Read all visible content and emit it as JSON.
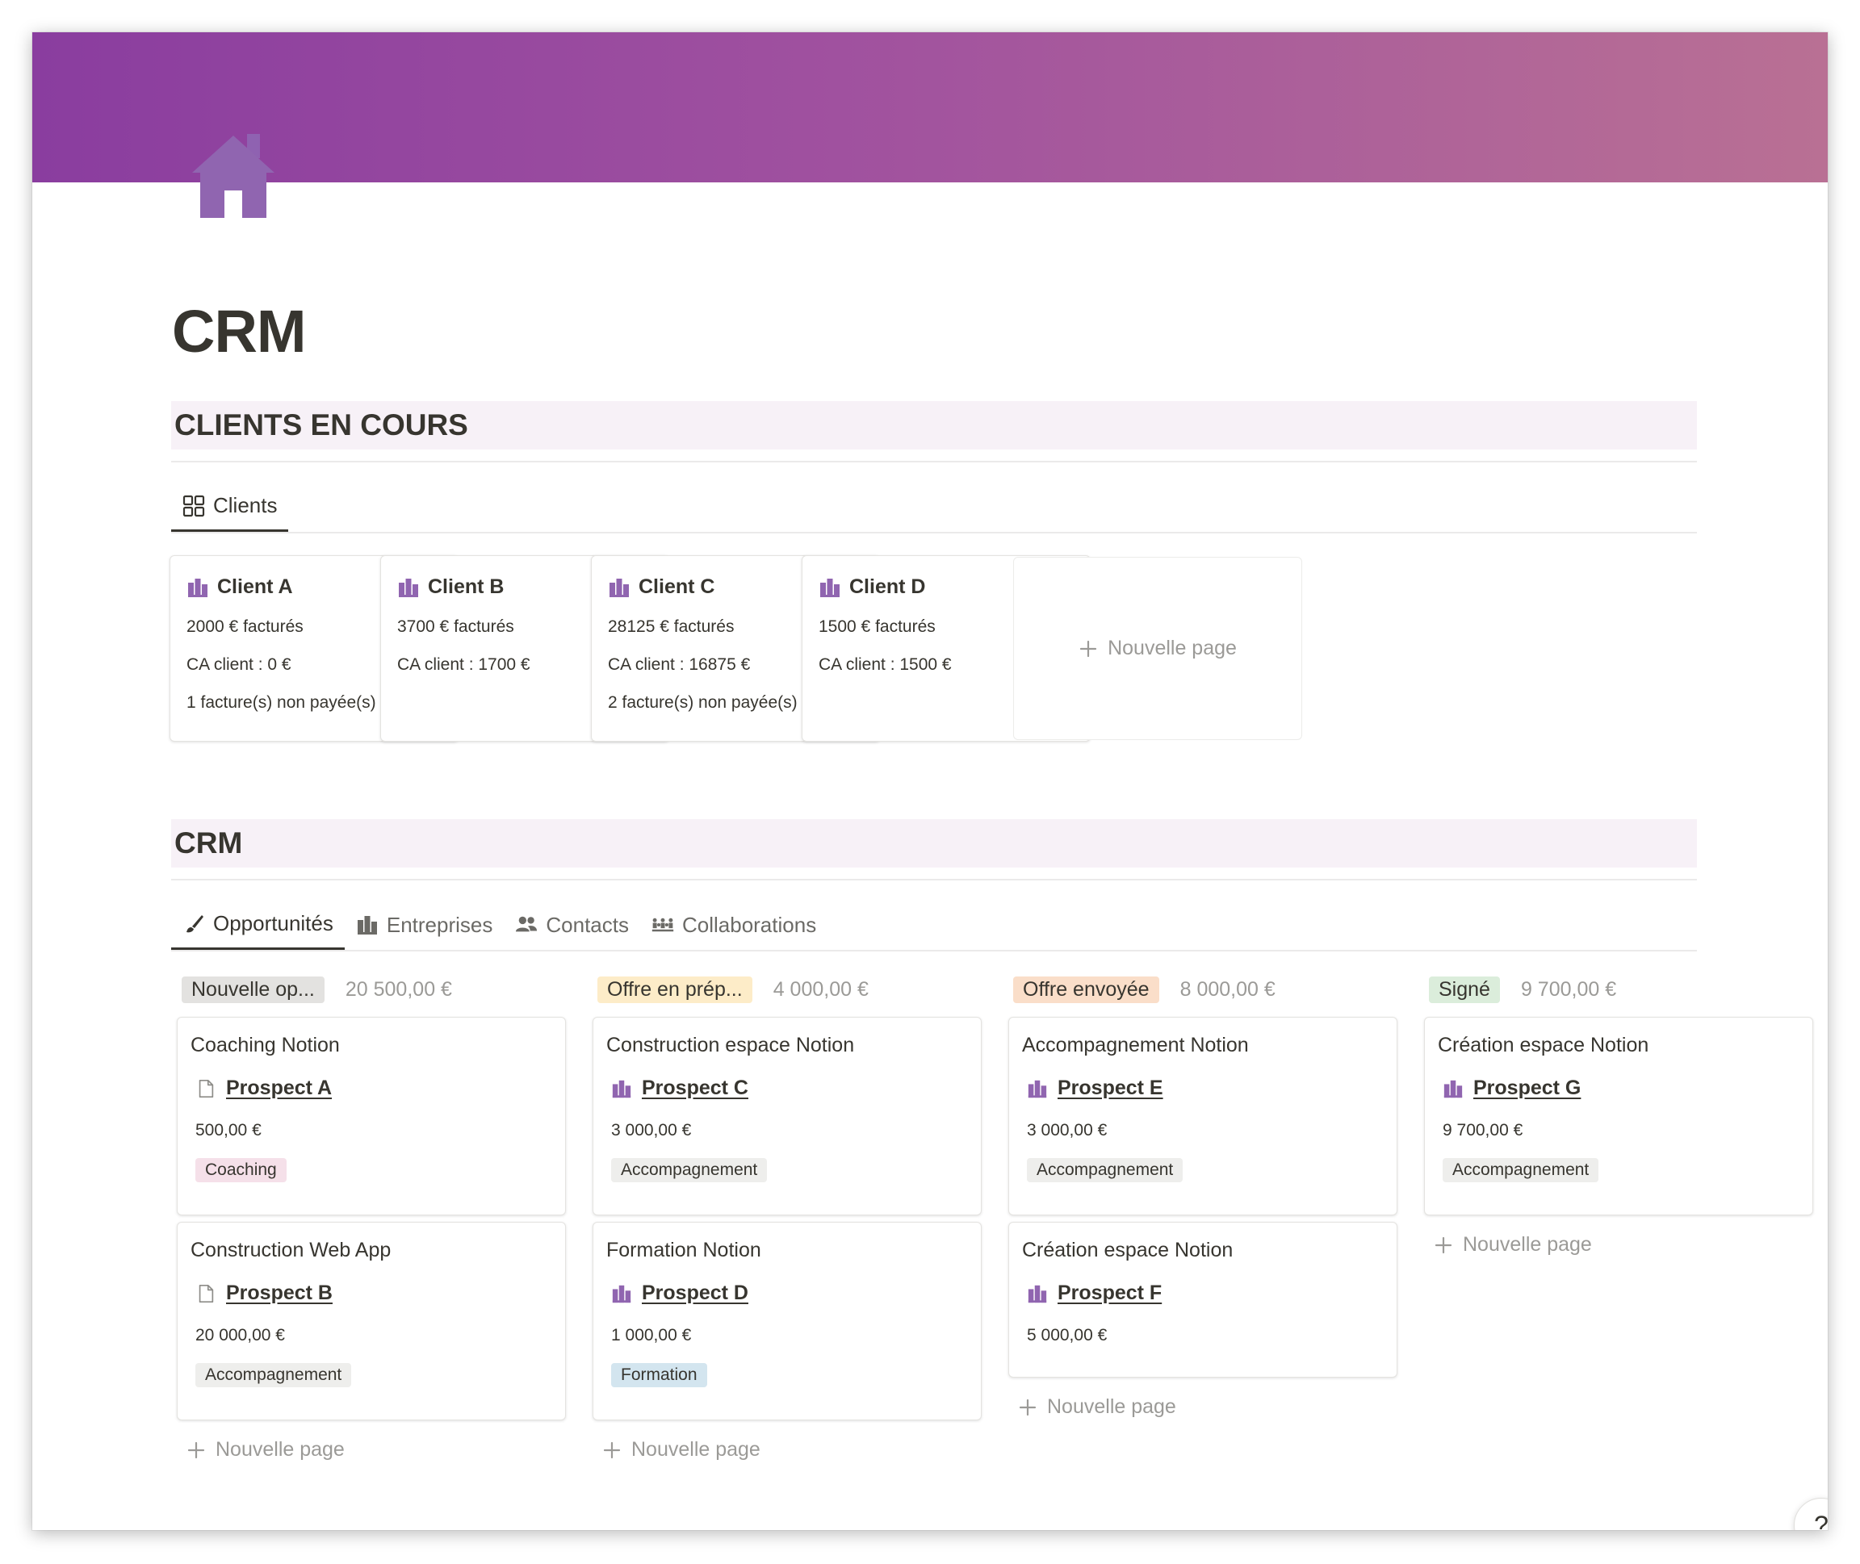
{
  "page": {
    "title": "CRM",
    "icon": "house-icon"
  },
  "colors": {
    "cover_start": "#8a3d9f",
    "cover_end": "#b97094",
    "icon_purple": "#9065b0",
    "band": "#f7f1f7"
  },
  "clients_section": {
    "heading": "CLIENTS EN COURS",
    "view_tab": "Clients",
    "cards": [
      {
        "name": "Client A",
        "lines": [
          "2000 € facturés",
          "CA client : 0 €",
          "1 facture(s) non payée(s)"
        ]
      },
      {
        "name": "Client B",
        "lines": [
          "3700 € facturés",
          "CA client : 1700 €"
        ]
      },
      {
        "name": "Client C",
        "lines": [
          "28125 € facturés",
          "CA client : 16875 €",
          "2 facture(s) non payée(s)"
        ]
      },
      {
        "name": "Client D",
        "lines": [
          "1500 € facturés",
          "CA client : 1500 €"
        ]
      }
    ],
    "new_page": "Nouvelle page"
  },
  "crm_section": {
    "heading": "CRM",
    "tabs": [
      {
        "label": "Opportunités",
        "icon": "brush-icon",
        "active": true
      },
      {
        "label": "Entreprises",
        "icon": "building-icon",
        "active": false
      },
      {
        "label": "Contacts",
        "icon": "people-icon",
        "active": false
      },
      {
        "label": "Collaborations",
        "icon": "group-icon",
        "active": false
      }
    ],
    "new_page": "Nouvelle page",
    "columns": [
      {
        "status": "Nouvelle op...",
        "status_color": "#e3e2e0",
        "sum": "20 500,00 €",
        "cards": [
          {
            "title": "Coaching Notion",
            "relation": "Prospect A",
            "relation_icon": "page-icon",
            "amount": "500,00 €",
            "tag": "Coaching",
            "tag_color": "#f5e0e9"
          },
          {
            "title": "Construction Web App",
            "relation": "Prospect B",
            "relation_icon": "page-icon",
            "amount": "20 000,00 €",
            "tag": "Accompagnement",
            "tag_color": "#eeeeec"
          }
        ]
      },
      {
        "status": "Offre en prép...",
        "status_color": "#fdecc8",
        "sum": "4 000,00 €",
        "cards": [
          {
            "title": "Construction espace Notion",
            "relation": "Prospect C",
            "relation_icon": "building-icon",
            "amount": "3 000,00 €",
            "tag": "Accompagnement",
            "tag_color": "#eeeeec"
          },
          {
            "title": "Formation Notion",
            "relation": "Prospect D",
            "relation_icon": "building-icon",
            "amount": "1 000,00 €",
            "tag": "Formation",
            "tag_color": "#d3e5ef"
          }
        ]
      },
      {
        "status": "Offre envoyée",
        "status_color": "#fadec9",
        "sum": "8 000,00 €",
        "cards": [
          {
            "title": "Accompagnement Notion",
            "relation": "Prospect E",
            "relation_icon": "building-icon",
            "amount": "3 000,00 €",
            "tag": "Accompagnement",
            "tag_color": "#eeeeec"
          },
          {
            "title": "Création espace Notion",
            "relation": "Prospect F",
            "relation_icon": "building-icon",
            "amount": "5 000,00 €",
            "tag": "",
            "tag_color": ""
          }
        ]
      },
      {
        "status": "Signé",
        "status_color": "#dbeddb",
        "sum": "9 700,00 €",
        "cards": [
          {
            "title": "Création espace Notion",
            "relation": "Prospect G",
            "relation_icon": "building-icon",
            "amount": "9 700,00 €",
            "tag": "Accompagnement",
            "tag_color": "#eeeeec"
          }
        ]
      }
    ]
  },
  "help_button": "?"
}
